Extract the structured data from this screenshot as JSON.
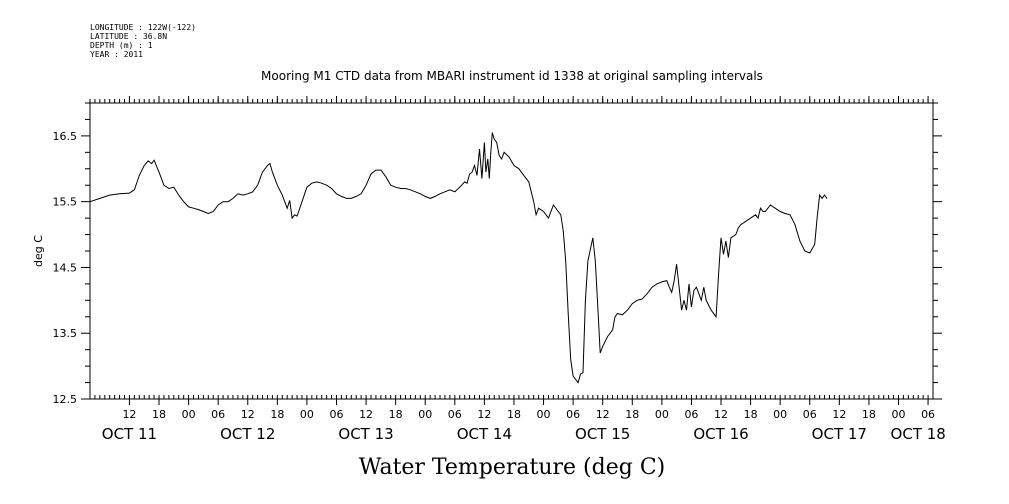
{
  "header": {
    "lines": [
      "LONGITUDE : 122W(-122)",
      "LATITUDE : 36.8N",
      "DEPTH (m) : 1",
      "YEAR : 2011"
    ]
  },
  "chart_data": {
    "type": "line",
    "title": "Mooring M1 CTD data from MBARI instrument id 1338 at original sampling intervals",
    "xlabel": "Water Temperature (deg C)",
    "ylabel": "deg C",
    "ylim": [
      12.5,
      17.0
    ],
    "yticks": [
      12.5,
      13.5,
      14.5,
      15.5,
      16.5
    ],
    "ytick_labels": [
      "12.5",
      "13.5",
      "14.5",
      "15.5",
      "16.5"
    ],
    "x_range_hours": [
      4,
      175
    ],
    "x_unit": "hours since OCT 11 00:00",
    "hour_ticks": [
      {
        "h": 12,
        "label": "12"
      },
      {
        "h": 18,
        "label": "18"
      },
      {
        "h": 24,
        "label": "00"
      },
      {
        "h": 30,
        "label": "06"
      },
      {
        "h": 36,
        "label": "12"
      },
      {
        "h": 42,
        "label": "18"
      },
      {
        "h": 48,
        "label": "00"
      },
      {
        "h": 54,
        "label": "06"
      },
      {
        "h": 60,
        "label": "12"
      },
      {
        "h": 66,
        "label": "18"
      },
      {
        "h": 72,
        "label": "00"
      },
      {
        "h": 78,
        "label": "06"
      },
      {
        "h": 84,
        "label": "12"
      },
      {
        "h": 90,
        "label": "18"
      },
      {
        "h": 96,
        "label": "00"
      },
      {
        "h": 102,
        "label": "06"
      },
      {
        "h": 108,
        "label": "12"
      },
      {
        "h": 114,
        "label": "18"
      },
      {
        "h": 120,
        "label": "00"
      },
      {
        "h": 126,
        "label": "06"
      },
      {
        "h": 132,
        "label": "12"
      },
      {
        "h": 138,
        "label": "18"
      },
      {
        "h": 144,
        "label": "00"
      },
      {
        "h": 150,
        "label": "06"
      },
      {
        "h": 156,
        "label": "12"
      },
      {
        "h": 162,
        "label": "18"
      },
      {
        "h": 168,
        "label": "00"
      },
      {
        "h": 174,
        "label": "06"
      }
    ],
    "day_labels": [
      {
        "h": 12,
        "label": "OCT 11"
      },
      {
        "h": 36,
        "label": "OCT 12"
      },
      {
        "h": 60,
        "label": "OCT 13"
      },
      {
        "h": 84,
        "label": "OCT 14"
      },
      {
        "h": 108,
        "label": "OCT 15"
      },
      {
        "h": 132,
        "label": "OCT 16"
      },
      {
        "h": 156,
        "label": "OCT 17"
      },
      {
        "h": 172,
        "label": "OCT 18"
      }
    ],
    "series": [
      {
        "name": "Water Temperature",
        "points": [
          [
            4,
            15.5
          ],
          [
            6,
            15.55
          ],
          [
            8,
            15.6
          ],
          [
            10,
            15.62
          ],
          [
            12,
            15.63
          ],
          [
            13,
            15.68
          ],
          [
            14,
            15.9
          ],
          [
            15,
            16.05
          ],
          [
            15.8,
            16.12
          ],
          [
            16.5,
            16.08
          ],
          [
            17,
            16.13
          ],
          [
            18,
            15.95
          ],
          [
            19,
            15.75
          ],
          [
            20,
            15.7
          ],
          [
            21,
            15.72
          ],
          [
            22,
            15.6
          ],
          [
            23,
            15.5
          ],
          [
            24,
            15.42
          ],
          [
            25,
            15.4
          ],
          [
            26,
            15.38
          ],
          [
            27,
            15.35
          ],
          [
            28,
            15.32
          ],
          [
            29,
            15.35
          ],
          [
            30,
            15.45
          ],
          [
            31,
            15.5
          ],
          [
            32,
            15.5
          ],
          [
            33,
            15.55
          ],
          [
            34,
            15.62
          ],
          [
            35,
            15.6
          ],
          [
            36,
            15.62
          ],
          [
            37,
            15.65
          ],
          [
            38,
            15.75
          ],
          [
            39,
            15.95
          ],
          [
            40,
            16.05
          ],
          [
            40.5,
            16.08
          ],
          [
            41,
            15.95
          ],
          [
            42,
            15.75
          ],
          [
            43,
            15.6
          ],
          [
            43.5,
            15.5
          ],
          [
            44,
            15.4
          ],
          [
            44.5,
            15.52
          ],
          [
            45,
            15.25
          ],
          [
            45.5,
            15.3
          ],
          [
            46,
            15.28
          ],
          [
            47,
            15.5
          ],
          [
            48,
            15.72
          ],
          [
            49,
            15.78
          ],
          [
            50,
            15.8
          ],
          [
            51,
            15.78
          ],
          [
            52,
            15.75
          ],
          [
            53,
            15.7
          ],
          [
            54,
            15.62
          ],
          [
            55,
            15.58
          ],
          [
            56,
            15.55
          ],
          [
            57,
            15.55
          ],
          [
            58,
            15.58
          ],
          [
            59,
            15.62
          ],
          [
            60,
            15.75
          ],
          [
            61,
            15.92
          ],
          [
            62,
            15.98
          ],
          [
            63,
            15.98
          ],
          [
            64,
            15.88
          ],
          [
            65,
            15.75
          ],
          [
            66,
            15.72
          ],
          [
            67,
            15.7
          ],
          [
            68,
            15.7
          ],
          [
            69,
            15.68
          ],
          [
            70,
            15.65
          ],
          [
            71,
            15.62
          ],
          [
            72,
            15.58
          ],
          [
            73,
            15.55
          ],
          [
            74,
            15.58
          ],
          [
            75,
            15.62
          ],
          [
            76,
            15.65
          ],
          [
            77,
            15.68
          ],
          [
            78,
            15.65
          ],
          [
            79,
            15.72
          ],
          [
            80,
            15.8
          ],
          [
            80.5,
            15.78
          ],
          [
            81,
            15.92
          ],
          [
            81.5,
            15.95
          ],
          [
            82,
            16.05
          ],
          [
            82.5,
            15.9
          ],
          [
            83,
            16.3
          ],
          [
            83.5,
            15.85
          ],
          [
            84,
            16.4
          ],
          [
            84.3,
            15.95
          ],
          [
            84.7,
            16.15
          ],
          [
            85,
            15.85
          ],
          [
            85.3,
            16.25
          ],
          [
            85.6,
            16.55
          ],
          [
            86,
            16.45
          ],
          [
            86.5,
            16.4
          ],
          [
            87,
            16.2
          ],
          [
            87.5,
            16.15
          ],
          [
            88,
            16.25
          ],
          [
            89,
            16.18
          ],
          [
            90,
            16.05
          ],
          [
            91,
            16.0
          ],
          [
            92,
            15.9
          ],
          [
            93,
            15.8
          ],
          [
            94,
            15.5
          ],
          [
            94.5,
            15.3
          ],
          [
            95,
            15.4
          ],
          [
            96,
            15.35
          ],
          [
            97,
            15.25
          ],
          [
            98,
            15.45
          ],
          [
            99,
            15.35
          ],
          [
            99.5,
            15.3
          ],
          [
            100,
            15.05
          ],
          [
            100.5,
            14.6
          ],
          [
            101,
            13.8
          ],
          [
            101.5,
            13.1
          ],
          [
            102,
            12.85
          ],
          [
            103,
            12.75
          ],
          [
            103.5,
            12.88
          ],
          [
            104,
            12.9
          ],
          [
            104.5,
            14.0
          ],
          [
            105,
            14.6
          ],
          [
            106,
            14.95
          ],
          [
            106.5,
            14.6
          ],
          [
            107,
            13.9
          ],
          [
            107.5,
            13.2
          ],
          [
            108,
            13.3
          ],
          [
            109,
            13.45
          ],
          [
            110,
            13.55
          ],
          [
            110.5,
            13.75
          ],
          [
            111,
            13.8
          ],
          [
            112,
            13.78
          ],
          [
            113,
            13.85
          ],
          [
            114,
            13.95
          ],
          [
            115,
            14.0
          ],
          [
            116,
            14.02
          ],
          [
            117,
            14.1
          ],
          [
            118,
            14.2
          ],
          [
            119,
            14.25
          ],
          [
            120,
            14.28
          ],
          [
            121,
            14.3
          ],
          [
            121.5,
            14.2
          ],
          [
            122,
            14.12
          ],
          [
            122.5,
            14.3
          ],
          [
            123,
            14.55
          ],
          [
            123.5,
            14.2
          ],
          [
            124,
            13.85
          ],
          [
            124.5,
            14.0
          ],
          [
            125,
            13.85
          ],
          [
            125.5,
            14.25
          ],
          [
            126,
            13.9
          ],
          [
            126.5,
            14.15
          ],
          [
            127,
            14.2
          ],
          [
            128,
            14.0
          ],
          [
            128.5,
            14.2
          ],
          [
            129,
            14.0
          ],
          [
            130,
            13.85
          ],
          [
            131,
            13.75
          ],
          [
            131.5,
            14.4
          ],
          [
            132,
            14.95
          ],
          [
            132.5,
            14.7
          ],
          [
            133,
            14.9
          ],
          [
            133.5,
            14.65
          ],
          [
            134,
            14.95
          ],
          [
            135,
            15.0
          ],
          [
            135.5,
            15.1
          ],
          [
            136,
            15.15
          ],
          [
            137,
            15.2
          ],
          [
            138,
            15.25
          ],
          [
            139,
            15.3
          ],
          [
            139.5,
            15.25
          ],
          [
            140,
            15.4
          ],
          [
            140.5,
            15.35
          ],
          [
            141,
            15.35
          ],
          [
            142,
            15.45
          ],
          [
            143,
            15.4
          ],
          [
            144,
            15.35
          ],
          [
            145,
            15.32
          ],
          [
            146,
            15.3
          ],
          [
            147,
            15.15
          ],
          [
            148,
            14.9
          ],
          [
            149,
            14.75
          ],
          [
            150,
            14.72
          ],
          [
            151,
            14.85
          ],
          [
            151.5,
            15.25
          ],
          [
            152,
            15.6
          ],
          [
            152.5,
            15.55
          ],
          [
            153,
            15.6
          ],
          [
            153.5,
            15.55
          ]
        ]
      }
    ]
  }
}
